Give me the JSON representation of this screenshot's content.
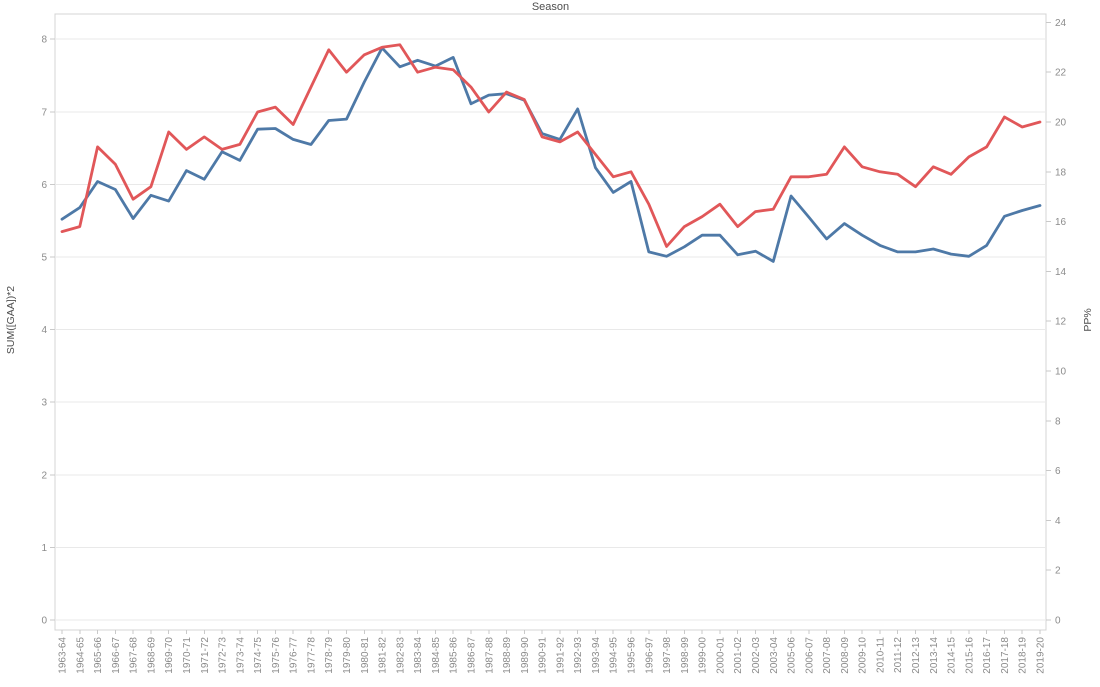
{
  "page": {
    "title": "Season"
  },
  "colors": {
    "grid": "#e9e9e9",
    "axis_line": "#d4d4d4",
    "tick": "#c9c9c9",
    "tick_label": "#8b8b8b",
    "axis_title": "#4e4e4e",
    "gaa_line": "#4e79a7",
    "pp_line": "#e15759"
  },
  "chart_data": {
    "type": "line",
    "title": "Season",
    "legend": "none",
    "grid": "horizontal",
    "categories": [
      "1963-64",
      "1964-65",
      "1965-66",
      "1966-67",
      "1967-68",
      "1968-69",
      "1969-70",
      "1970-71",
      "1971-72",
      "1972-73",
      "1973-74",
      "1974-75",
      "1975-76",
      "1976-77",
      "1977-78",
      "1978-79",
      "1979-80",
      "1980-81",
      "1981-82",
      "1982-83",
      "1983-84",
      "1984-85",
      "1985-86",
      "1986-87",
      "1987-88",
      "1988-89",
      "1989-90",
      "1990-91",
      "1991-92",
      "1992-93",
      "1993-94",
      "1994-95",
      "1995-96",
      "1996-97",
      "1997-98",
      "1998-99",
      "1999-00",
      "2000-01",
      "2001-02",
      "2002-03",
      "2003-04",
      "2005-06",
      "2006-07",
      "2007-08",
      "2008-09",
      "2009-10",
      "2010-11",
      "2011-12",
      "2012-13",
      "2013-14",
      "2014-15",
      "2015-16",
      "2016-17",
      "2017-18",
      "2018-19",
      "2019-20"
    ],
    "series": [
      {
        "name": "SUM([GAA])*2",
        "axis": "left",
        "color": "#4e79a7",
        "values": [
          5.52,
          5.68,
          6.04,
          5.93,
          5.53,
          5.85,
          5.77,
          6.19,
          6.07,
          6.45,
          6.33,
          6.76,
          6.77,
          6.62,
          6.55,
          6.88,
          6.9,
          7.41,
          7.88,
          7.62,
          7.71,
          7.63,
          7.75,
          7.11,
          7.23,
          7.25,
          7.16,
          6.7,
          6.62,
          7.04,
          6.23,
          5.89,
          6.04,
          5.07,
          5.01,
          5.14,
          5.3,
          5.3,
          5.03,
          5.08,
          4.94,
          5.84,
          5.55,
          5.25,
          5.46,
          5.3,
          5.16,
          5.07,
          5.07,
          5.11,
          5.04,
          5.01,
          5.16,
          5.56,
          5.64,
          5.71
        ]
      },
      {
        "name": "PP%",
        "axis": "right",
        "color": "#e15759",
        "values": [
          15.6,
          15.8,
          19.0,
          18.3,
          16.9,
          17.4,
          19.6,
          18.9,
          19.4,
          18.9,
          19.1,
          20.4,
          20.6,
          19.9,
          21.4,
          22.9,
          22.0,
          22.7,
          23.0,
          23.1,
          22.0,
          22.2,
          22.1,
          21.4,
          20.4,
          21.2,
          20.9,
          19.4,
          19.2,
          19.6,
          18.7,
          17.8,
          18.0,
          16.7,
          15.0,
          15.8,
          16.2,
          16.7,
          15.8,
          16.4,
          16.5,
          17.8,
          17.8,
          17.9,
          19.0,
          18.2,
          18.0,
          17.9,
          17.4,
          18.2,
          17.9,
          18.6,
          19.0,
          20.2,
          19.8,
          20.0
        ]
      }
    ],
    "axes": {
      "left": {
        "label": "SUM([GAA])*2",
        "min": 0,
        "max": 8.35,
        "ticks": [
          0,
          1,
          2,
          3,
          4,
          5,
          6,
          7,
          8
        ]
      },
      "right": {
        "label": "PP%",
        "min": 0,
        "max": 24.35,
        "ticks": [
          0,
          2,
          4,
          6,
          8,
          10,
          12,
          14,
          16,
          18,
          20,
          22,
          24
        ]
      },
      "x": {
        "label": "Season",
        "tick_rotation": -90
      }
    }
  }
}
